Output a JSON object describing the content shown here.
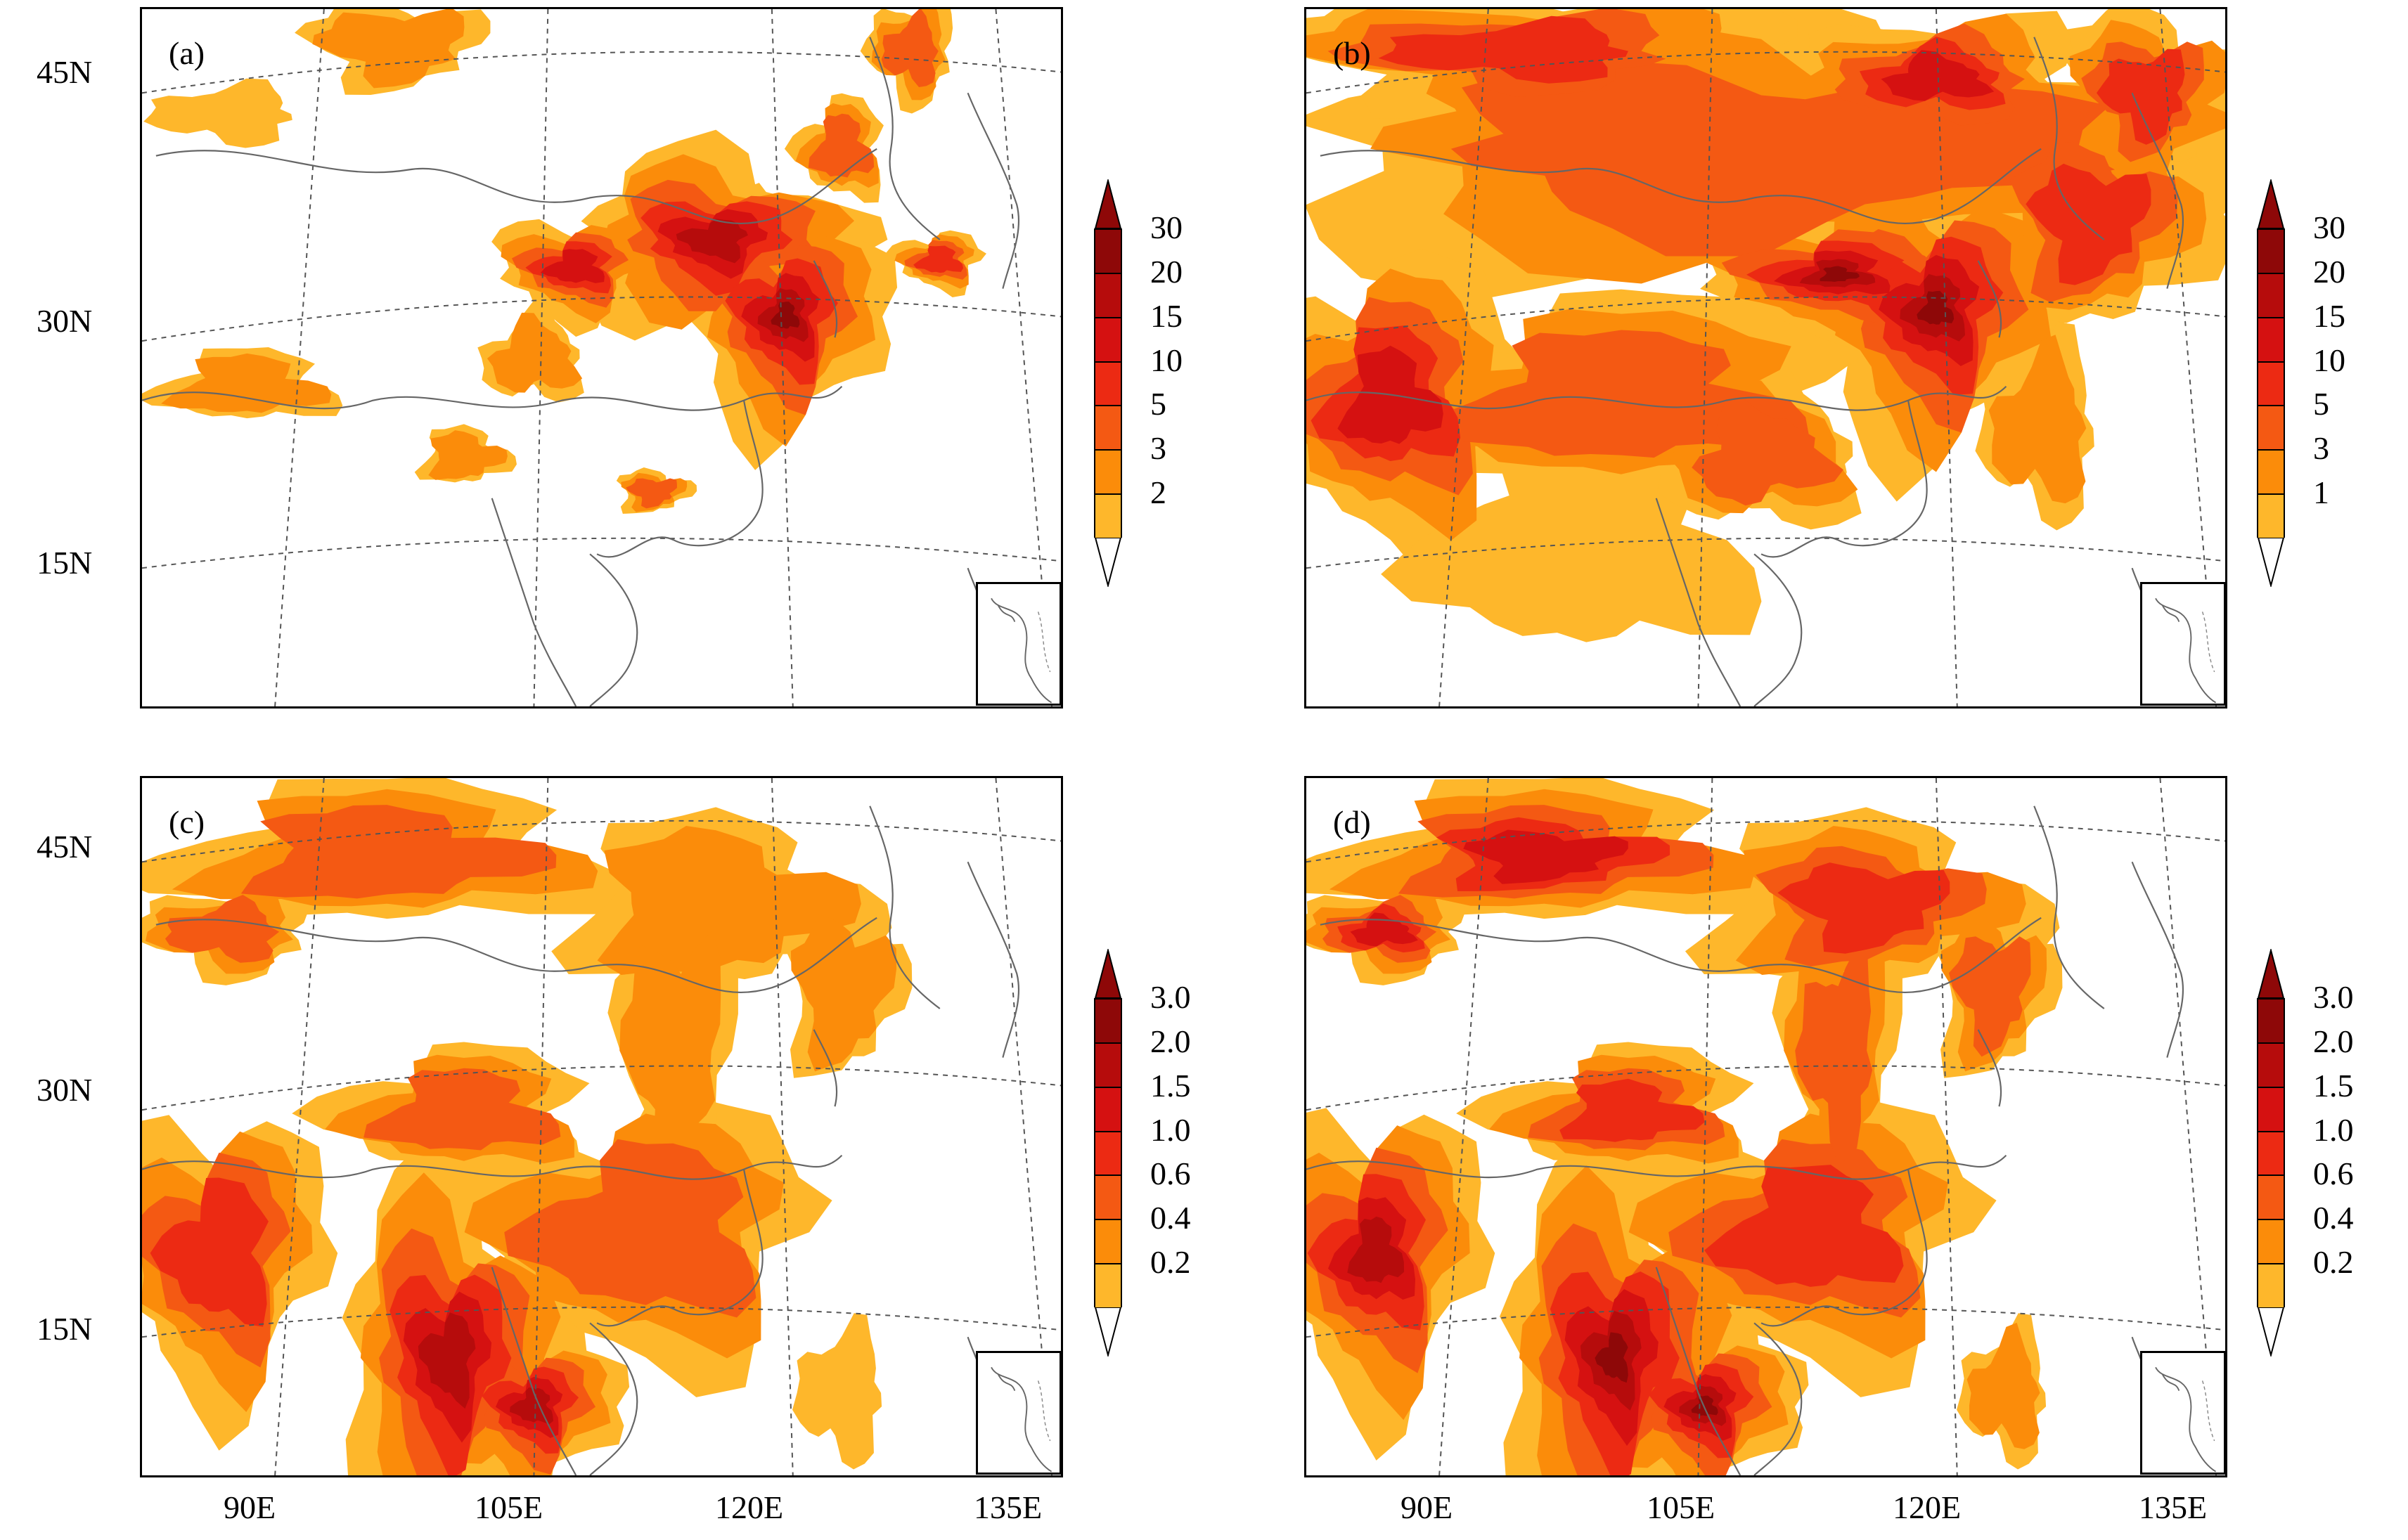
{
  "panels": [
    {
      "id": "a",
      "label": "(a)",
      "ticks": [
        "30",
        "20",
        "15",
        "10",
        "5",
        "3",
        "2"
      ],
      "colors": [
        "#feb72b",
        "#fb8c0a",
        "#f45913",
        "#ec2a13",
        "#d51111",
        "#b60c0c",
        "#8e0808"
      ],
      "intensity": "low"
    },
    {
      "id": "b",
      "label": "(b)",
      "ticks": [
        "30",
        "20",
        "15",
        "10",
        "5",
        "3",
        "1"
      ],
      "colors": [
        "#feb72b",
        "#fb8c0a",
        "#f45913",
        "#ec2a13",
        "#d51111",
        "#b60c0c",
        "#8e0808"
      ],
      "intensity": "high"
    },
    {
      "id": "c",
      "label": "(c)",
      "ticks": [
        "3.0",
        "2.0",
        "1.5",
        "1.0",
        "0.6",
        "0.4",
        "0.2"
      ],
      "colors": [
        "#feb72b",
        "#fb8c0a",
        "#f45913",
        "#ec2a13",
        "#d51111",
        "#b60c0c",
        "#8e0808"
      ],
      "intensity": "south"
    },
    {
      "id": "d",
      "label": "(d)",
      "ticks": [
        "3.0",
        "2.0",
        "1.5",
        "1.0",
        "0.6",
        "0.4",
        "0.2"
      ],
      "colors": [
        "#feb72b",
        "#fb8c0a",
        "#f45913",
        "#ec2a13",
        "#d51111",
        "#b60c0c",
        "#8e0808"
      ],
      "intensity": "south-strong"
    }
  ],
  "lat_labels": [
    "45N",
    "30N",
    "15N"
  ],
  "lon_labels": [
    "90E",
    "105E",
    "120E",
    "135E"
  ]
}
